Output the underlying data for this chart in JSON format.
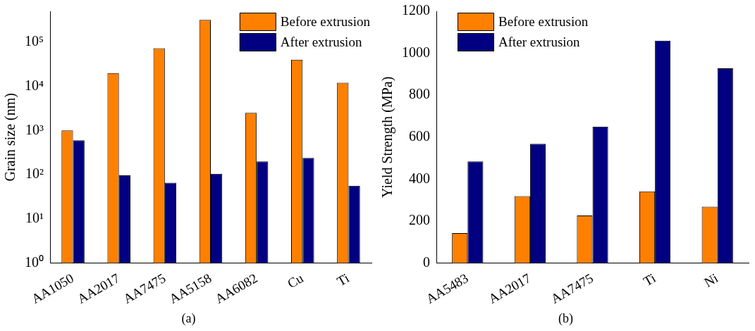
{
  "chart_data": [
    {
      "type": "bar",
      "ylabel": "Grain size (nm)",
      "categories": [
        "AA1050",
        "AA2017",
        "AA7475",
        "AA5158",
        "AA6082",
        "Cu",
        "Ti"
      ],
      "series": [
        {
          "name": "Before extrusion",
          "color": "#ff8000",
          "values": [
            1000,
            20000,
            73000,
            320000,
            2500,
            40000,
            12000
          ]
        },
        {
          "name": "After extrusion",
          "color": "#000080",
          "values": [
            600,
            97,
            66,
            105,
            200,
            240,
            56
          ]
        }
      ],
      "log": "y",
      "ylim": [
        1,
        500000
      ],
      "yticks": [
        {
          "value": 1,
          "label": "10⁰"
        },
        {
          "value": 10,
          "label": "10¹"
        },
        {
          "value": 100,
          "label": "10²"
        },
        {
          "value": 1000,
          "label": "10³"
        },
        {
          "value": 10000,
          "label": "10⁴"
        },
        {
          "value": 100000,
          "label": "10⁵"
        }
      ],
      "legend": "top right",
      "annotations": [
        "(a)"
      ]
    },
    {
      "type": "bar",
      "ylabel": "Yield Strength (MPa)",
      "categories": [
        "AA5483",
        "AA2017",
        "AA7475",
        "Ti",
        "Ni"
      ],
      "series": [
        {
          "name": "Before extrusion",
          "color": "#ff8000",
          "values": [
            143,
            319,
            227,
            342,
            269
          ]
        },
        {
          "name": "After extrusion",
          "color": "#000080",
          "values": [
            484,
            568,
            650,
            1060,
            928
          ]
        }
      ],
      "ylim": [
        0,
        1200
      ],
      "yticks": [
        0,
        200,
        400,
        600,
        800,
        1000,
        1200
      ],
      "legend": "top left",
      "annotations": [
        "(b)"
      ]
    }
  ]
}
